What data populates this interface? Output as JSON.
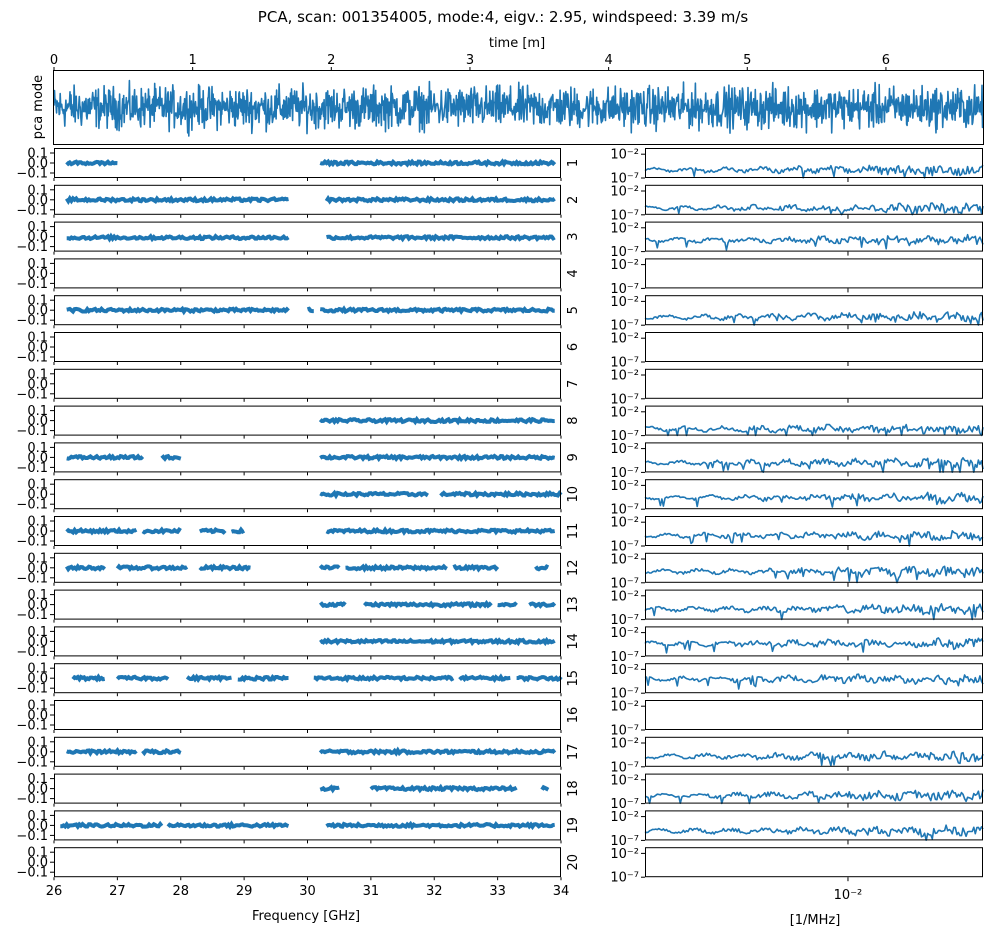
{
  "title": "PCA, scan: 001354005, mode:4, eigv.: 2.95, windspeed: 3.39 m/s",
  "colors": {
    "series": "#1f77b4",
    "axes": "#000000",
    "background": "#ffffff"
  },
  "chart_data": [
    {
      "type": "line",
      "panel": "time-series",
      "title": "",
      "xlabel": "time [m]",
      "ylabel": "pca mode",
      "xlim": [
        0,
        6.7
      ],
      "ylim": [
        -1,
        1
      ],
      "x_ticks": [
        0,
        1,
        2,
        3,
        4,
        5,
        6
      ],
      "x_tick_labels": [
        "0",
        "1",
        "2",
        "3",
        "4",
        "5",
        "6"
      ],
      "xaxis_position": "top",
      "signal": {
        "mean": 0.0,
        "amplitude": 0.55,
        "samples": 1800,
        "description_hidden": true
      }
    },
    {
      "type": "scatter",
      "panel": "spectra",
      "xlabel": "Frequency [GHz]",
      "xlim": [
        26,
        34
      ],
      "ylim": [
        -0.15,
        0.15
      ],
      "x_ticks": [
        26,
        27,
        28,
        29,
        30,
        31,
        32,
        33,
        34
      ],
      "x_tick_labels": [
        "26",
        "27",
        "28",
        "29",
        "30",
        "31",
        "32",
        "33",
        "34"
      ],
      "y_ticks": [
        0.1,
        0.0,
        -0.1
      ],
      "y_tick_labels": [
        "0.1",
        "0.0",
        "−0.1"
      ],
      "series": [
        {
          "name": "1",
          "level": 0.0,
          "segments": [
            [
              26.2,
              27.0
            ],
            [
              30.2,
              33.9
            ]
          ]
        },
        {
          "name": "2",
          "level": 0.0,
          "segments": [
            [
              26.2,
              29.7
            ],
            [
              30.3,
              33.9
            ]
          ]
        },
        {
          "name": "3",
          "level": -0.01,
          "segments": [
            [
              26.2,
              29.7
            ],
            [
              30.3,
              33.9
            ]
          ]
        },
        {
          "name": "4",
          "level": 0.0,
          "segments": []
        },
        {
          "name": "5",
          "level": 0.0,
          "segments": [
            [
              26.2,
              29.7
            ],
            [
              30.0,
              30.1
            ],
            [
              30.2,
              33.9
            ]
          ]
        },
        {
          "name": "6",
          "level": 0.0,
          "segments": []
        },
        {
          "name": "7",
          "level": 0.0,
          "segments": []
        },
        {
          "name": "8",
          "level": 0.0,
          "segments": [
            [
              30.2,
              33.9
            ]
          ]
        },
        {
          "name": "9",
          "level": 0.0,
          "segments": [
            [
              26.2,
              27.4
            ],
            [
              27.7,
              28.0
            ],
            [
              30.2,
              33.9
            ]
          ]
        },
        {
          "name": "10",
          "level": 0.0,
          "segments": [
            [
              30.2,
              31.9
            ],
            [
              32.1,
              34.0
            ]
          ]
        },
        {
          "name": "11",
          "level": 0.0,
          "segments": [
            [
              26.2,
              27.3
            ],
            [
              27.4,
              28.0
            ],
            [
              28.3,
              28.7
            ],
            [
              28.8,
              29.0
            ],
            [
              30.3,
              33.9
            ]
          ]
        },
        {
          "name": "12",
          "level": 0.0,
          "segments": [
            [
              26.2,
              26.8
            ],
            [
              27.0,
              28.1
            ],
            [
              28.3,
              29.1
            ],
            [
              30.2,
              30.5
            ],
            [
              30.6,
              32.2
            ],
            [
              32.3,
              33.0
            ],
            [
              33.6,
              33.8
            ]
          ]
        },
        {
          "name": "13",
          "level": 0.0,
          "segments": [
            [
              30.2,
              30.6
            ],
            [
              30.9,
              32.9
            ],
            [
              33.0,
              33.3
            ],
            [
              33.5,
              33.9
            ]
          ]
        },
        {
          "name": "14",
          "level": 0.0,
          "segments": [
            [
              30.2,
              33.9
            ]
          ]
        },
        {
          "name": "15",
          "level": 0.0,
          "segments": [
            [
              26.3,
              26.8
            ],
            [
              27.0,
              27.8
            ],
            [
              28.1,
              28.8
            ],
            [
              28.9,
              29.7
            ],
            [
              30.1,
              32.3
            ],
            [
              32.4,
              33.2
            ],
            [
              33.3,
              34.0
            ]
          ]
        },
        {
          "name": "16",
          "level": 0.0,
          "segments": []
        },
        {
          "name": "17",
          "level": 0.0,
          "segments": [
            [
              26.2,
              27.3
            ],
            [
              27.4,
              28.0
            ],
            [
              30.2,
              33.9
            ]
          ]
        },
        {
          "name": "18",
          "level": 0.0,
          "segments": [
            [
              30.2,
              30.5
            ],
            [
              31.0,
              33.3
            ],
            [
              33.7,
              33.8
            ]
          ]
        },
        {
          "name": "19",
          "level": 0.0,
          "segments": [
            [
              26.1,
              27.7
            ],
            [
              27.8,
              29.7
            ],
            [
              30.3,
              33.9
            ]
          ]
        },
        {
          "name": "20",
          "level": 0.0,
          "segments": []
        }
      ]
    },
    {
      "type": "line",
      "panel": "power-spectra",
      "xlabel": "[1/MHz]",
      "xscale": "log",
      "yscale": "log",
      "xlim": [
        0.0026,
        0.0245
      ],
      "ylim": [
        1e-07,
        0.2
      ],
      "x_ticks": [
        0.01
      ],
      "x_tick_labels": [
        "10⁻²"
      ],
      "y_ticks": [
        0.01,
        1e-07
      ],
      "y_tick_labels": [
        "10⁻²",
        "10⁻⁷"
      ],
      "series": [
        {
          "name": "1",
          "has_data": true,
          "log10_level": -5.3
        },
        {
          "name": "2",
          "has_data": true,
          "log10_level": -5.6
        },
        {
          "name": "3",
          "has_data": true,
          "log10_level": -4.6
        },
        {
          "name": "4",
          "has_data": false
        },
        {
          "name": "5",
          "has_data": true,
          "log10_level": -5.3
        },
        {
          "name": "6",
          "has_data": false
        },
        {
          "name": "7",
          "has_data": false
        },
        {
          "name": "8",
          "has_data": true,
          "log10_level": -5.6
        },
        {
          "name": "9",
          "has_data": true,
          "log10_level": -5.0
        },
        {
          "name": "10",
          "has_data": true,
          "log10_level": -4.6
        },
        {
          "name": "11",
          "has_data": true,
          "log10_level": -4.8
        },
        {
          "name": "12",
          "has_data": true,
          "log10_level": -4.6
        },
        {
          "name": "13",
          "has_data": true,
          "log10_level": -4.8
        },
        {
          "name": "14",
          "has_data": true,
          "log10_level": -4.3
        },
        {
          "name": "15",
          "has_data": true,
          "log10_level": -4.0
        },
        {
          "name": "16",
          "has_data": false
        },
        {
          "name": "17",
          "has_data": true,
          "log10_level": -4.8
        },
        {
          "name": "18",
          "has_data": true,
          "log10_level": -5.3
        },
        {
          "name": "19",
          "has_data": true,
          "log10_level": -5.0
        },
        {
          "name": "20",
          "has_data": false
        }
      ]
    }
  ]
}
